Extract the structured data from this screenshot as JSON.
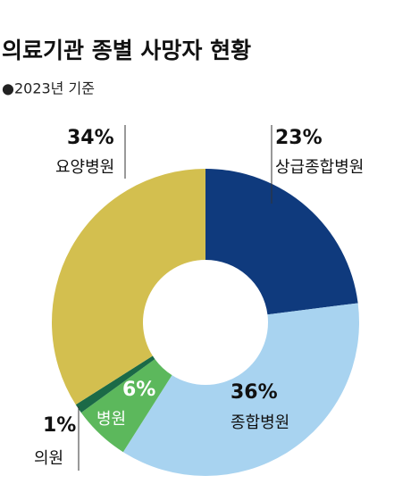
{
  "chart_data": {
    "type": "pie",
    "title": "의료기관 종별 사망자 현황",
    "subtitle": "●2023년 기준",
    "categories": [
      "상급종합병원",
      "종합병원",
      "병원",
      "의원",
      "요양병원"
    ],
    "values": [
      23,
      36,
      6,
      1,
      34
    ],
    "value_labels": [
      "23%",
      "36%",
      "6%",
      "1%",
      "34%"
    ],
    "colors": [
      "#0f3a7d",
      "#a8d3f0",
      "#5cb85c",
      "#1b6a47",
      "#d3bf4f"
    ]
  }
}
